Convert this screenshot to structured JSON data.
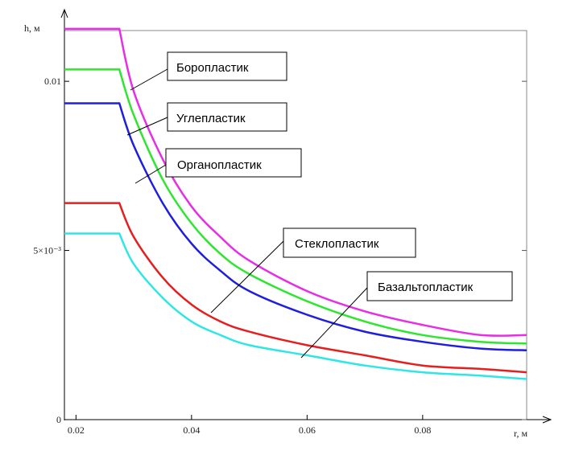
{
  "chart_data": {
    "type": "line",
    "xlabel": "r, м",
    "ylabel": "h, м",
    "xlim": [
      0.018,
      0.098
    ],
    "ylim": [
      0,
      0.0115
    ],
    "xticks": [
      0.02,
      0.04,
      0.06,
      0.08
    ],
    "xtick_labels": [
      "0.02",
      "0.04",
      "0.06",
      "0.08"
    ],
    "yticks": [
      0,
      0.005,
      0.01
    ],
    "ytick_labels": [
      "0",
      "5×10⁻³",
      "0.01"
    ],
    "grid": false,
    "breakpoint_x": 0.0275,
    "series": [
      {
        "name": "Боропластик",
        "color": "#e62ee6",
        "x": [
          0.018,
          0.0275,
          0.03,
          0.035,
          0.04,
          0.045,
          0.05,
          0.06,
          0.07,
          0.08,
          0.09,
          0.098
        ],
        "y": [
          0.01155,
          0.01155,
          0.0097,
          0.0077,
          0.0063,
          0.0054,
          0.0047,
          0.0038,
          0.0032,
          0.0028,
          0.0025,
          0.0025
        ]
      },
      {
        "name": "Углепластик",
        "color": "#2ee62e",
        "x": [
          0.018,
          0.0275,
          0.03,
          0.035,
          0.04,
          0.045,
          0.05,
          0.06,
          0.07,
          0.08,
          0.09,
          0.098
        ],
        "y": [
          0.01035,
          0.01035,
          0.009,
          0.0071,
          0.0058,
          0.0049,
          0.0043,
          0.0035,
          0.0029,
          0.0025,
          0.0023,
          0.00225
        ]
      },
      {
        "name": "Органопластик",
        "color": "#1e1ee0",
        "x": [
          0.018,
          0.0275,
          0.03,
          0.035,
          0.04,
          0.045,
          0.05,
          0.06,
          0.07,
          0.08,
          0.09,
          0.098
        ],
        "y": [
          0.00935,
          0.00935,
          0.0081,
          0.0064,
          0.0052,
          0.0044,
          0.0038,
          0.0031,
          0.0026,
          0.0023,
          0.0021,
          0.00205
        ]
      },
      {
        "name": "Стеклопластик",
        "color": "#e61e1e",
        "x": [
          0.018,
          0.0275,
          0.03,
          0.035,
          0.04,
          0.045,
          0.05,
          0.06,
          0.07,
          0.08,
          0.09,
          0.098
        ],
        "y": [
          0.0064,
          0.0064,
          0.0054,
          0.0042,
          0.0034,
          0.0029,
          0.0026,
          0.0022,
          0.0019,
          0.0016,
          0.0015,
          0.0014
        ]
      },
      {
        "name": "Базальтопластик",
        "color": "#2ee6e6",
        "x": [
          0.018,
          0.0275,
          0.03,
          0.035,
          0.04,
          0.045,
          0.05,
          0.06,
          0.07,
          0.08,
          0.09,
          0.098
        ],
        "y": [
          0.0055,
          0.0055,
          0.0046,
          0.0036,
          0.0029,
          0.0025,
          0.0022,
          0.0019,
          0.0016,
          0.0014,
          0.0013,
          0.0012
        ]
      }
    ],
    "annotations": [
      {
        "text": "Боропластик",
        "series": "Боропластик"
      },
      {
        "text": "Углепластик",
        "series": "Углепластик"
      },
      {
        "text": "Органопластик",
        "series": "Органопластик"
      },
      {
        "text": "Стеклопластик",
        "series": "Стеклопластик"
      },
      {
        "text": "Базальтопластик",
        "series": "Базальтопластик"
      }
    ]
  }
}
